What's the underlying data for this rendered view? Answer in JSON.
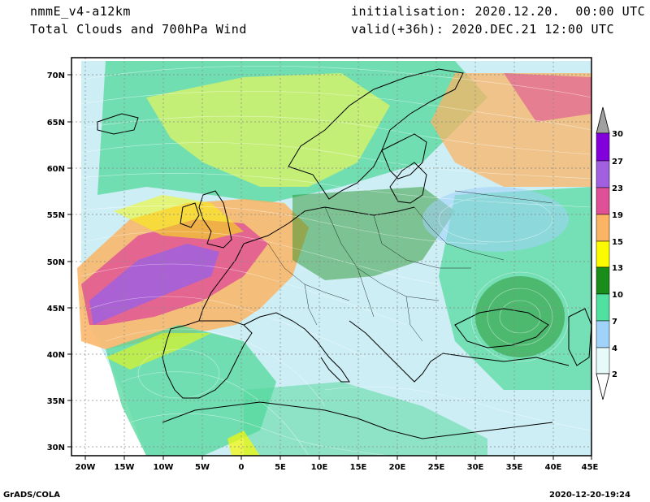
{
  "header": {
    "model": "nmmE_v4-a12km",
    "field": "Total Clouds and 700hPa Wind",
    "init_label": "initialisation: 2020.12.20.  00:00 UTC",
    "valid_label": "valid(+36h): 2020.DEC.21 12:00 UTC"
  },
  "map": {
    "lat_labels": [
      "70N",
      "65N",
      "60N",
      "55N",
      "50N",
      "45N",
      "40N",
      "35N",
      "30N"
    ],
    "lon_labels": [
      "20W",
      "15W",
      "10W",
      "5W",
      "0",
      "5E",
      "10E",
      "15E",
      "20E",
      "25E",
      "30E",
      "35E",
      "40E",
      "45E"
    ]
  },
  "colorbar": {
    "labels": [
      "2",
      "4",
      "7",
      "10",
      "13",
      "15",
      "19",
      "23",
      "27",
      "30"
    ],
    "colors": [
      "#e6fafa",
      "#a0d2fa",
      "#50e0a0",
      "#1a8c1a",
      "#fafa00",
      "#fab464",
      "#e05096",
      "#a060e0",
      "#8200dc",
      "#a0a0a0"
    ]
  },
  "footer": {
    "left": "GrADS/COLA",
    "right": "2020-12-20-19:24"
  }
}
